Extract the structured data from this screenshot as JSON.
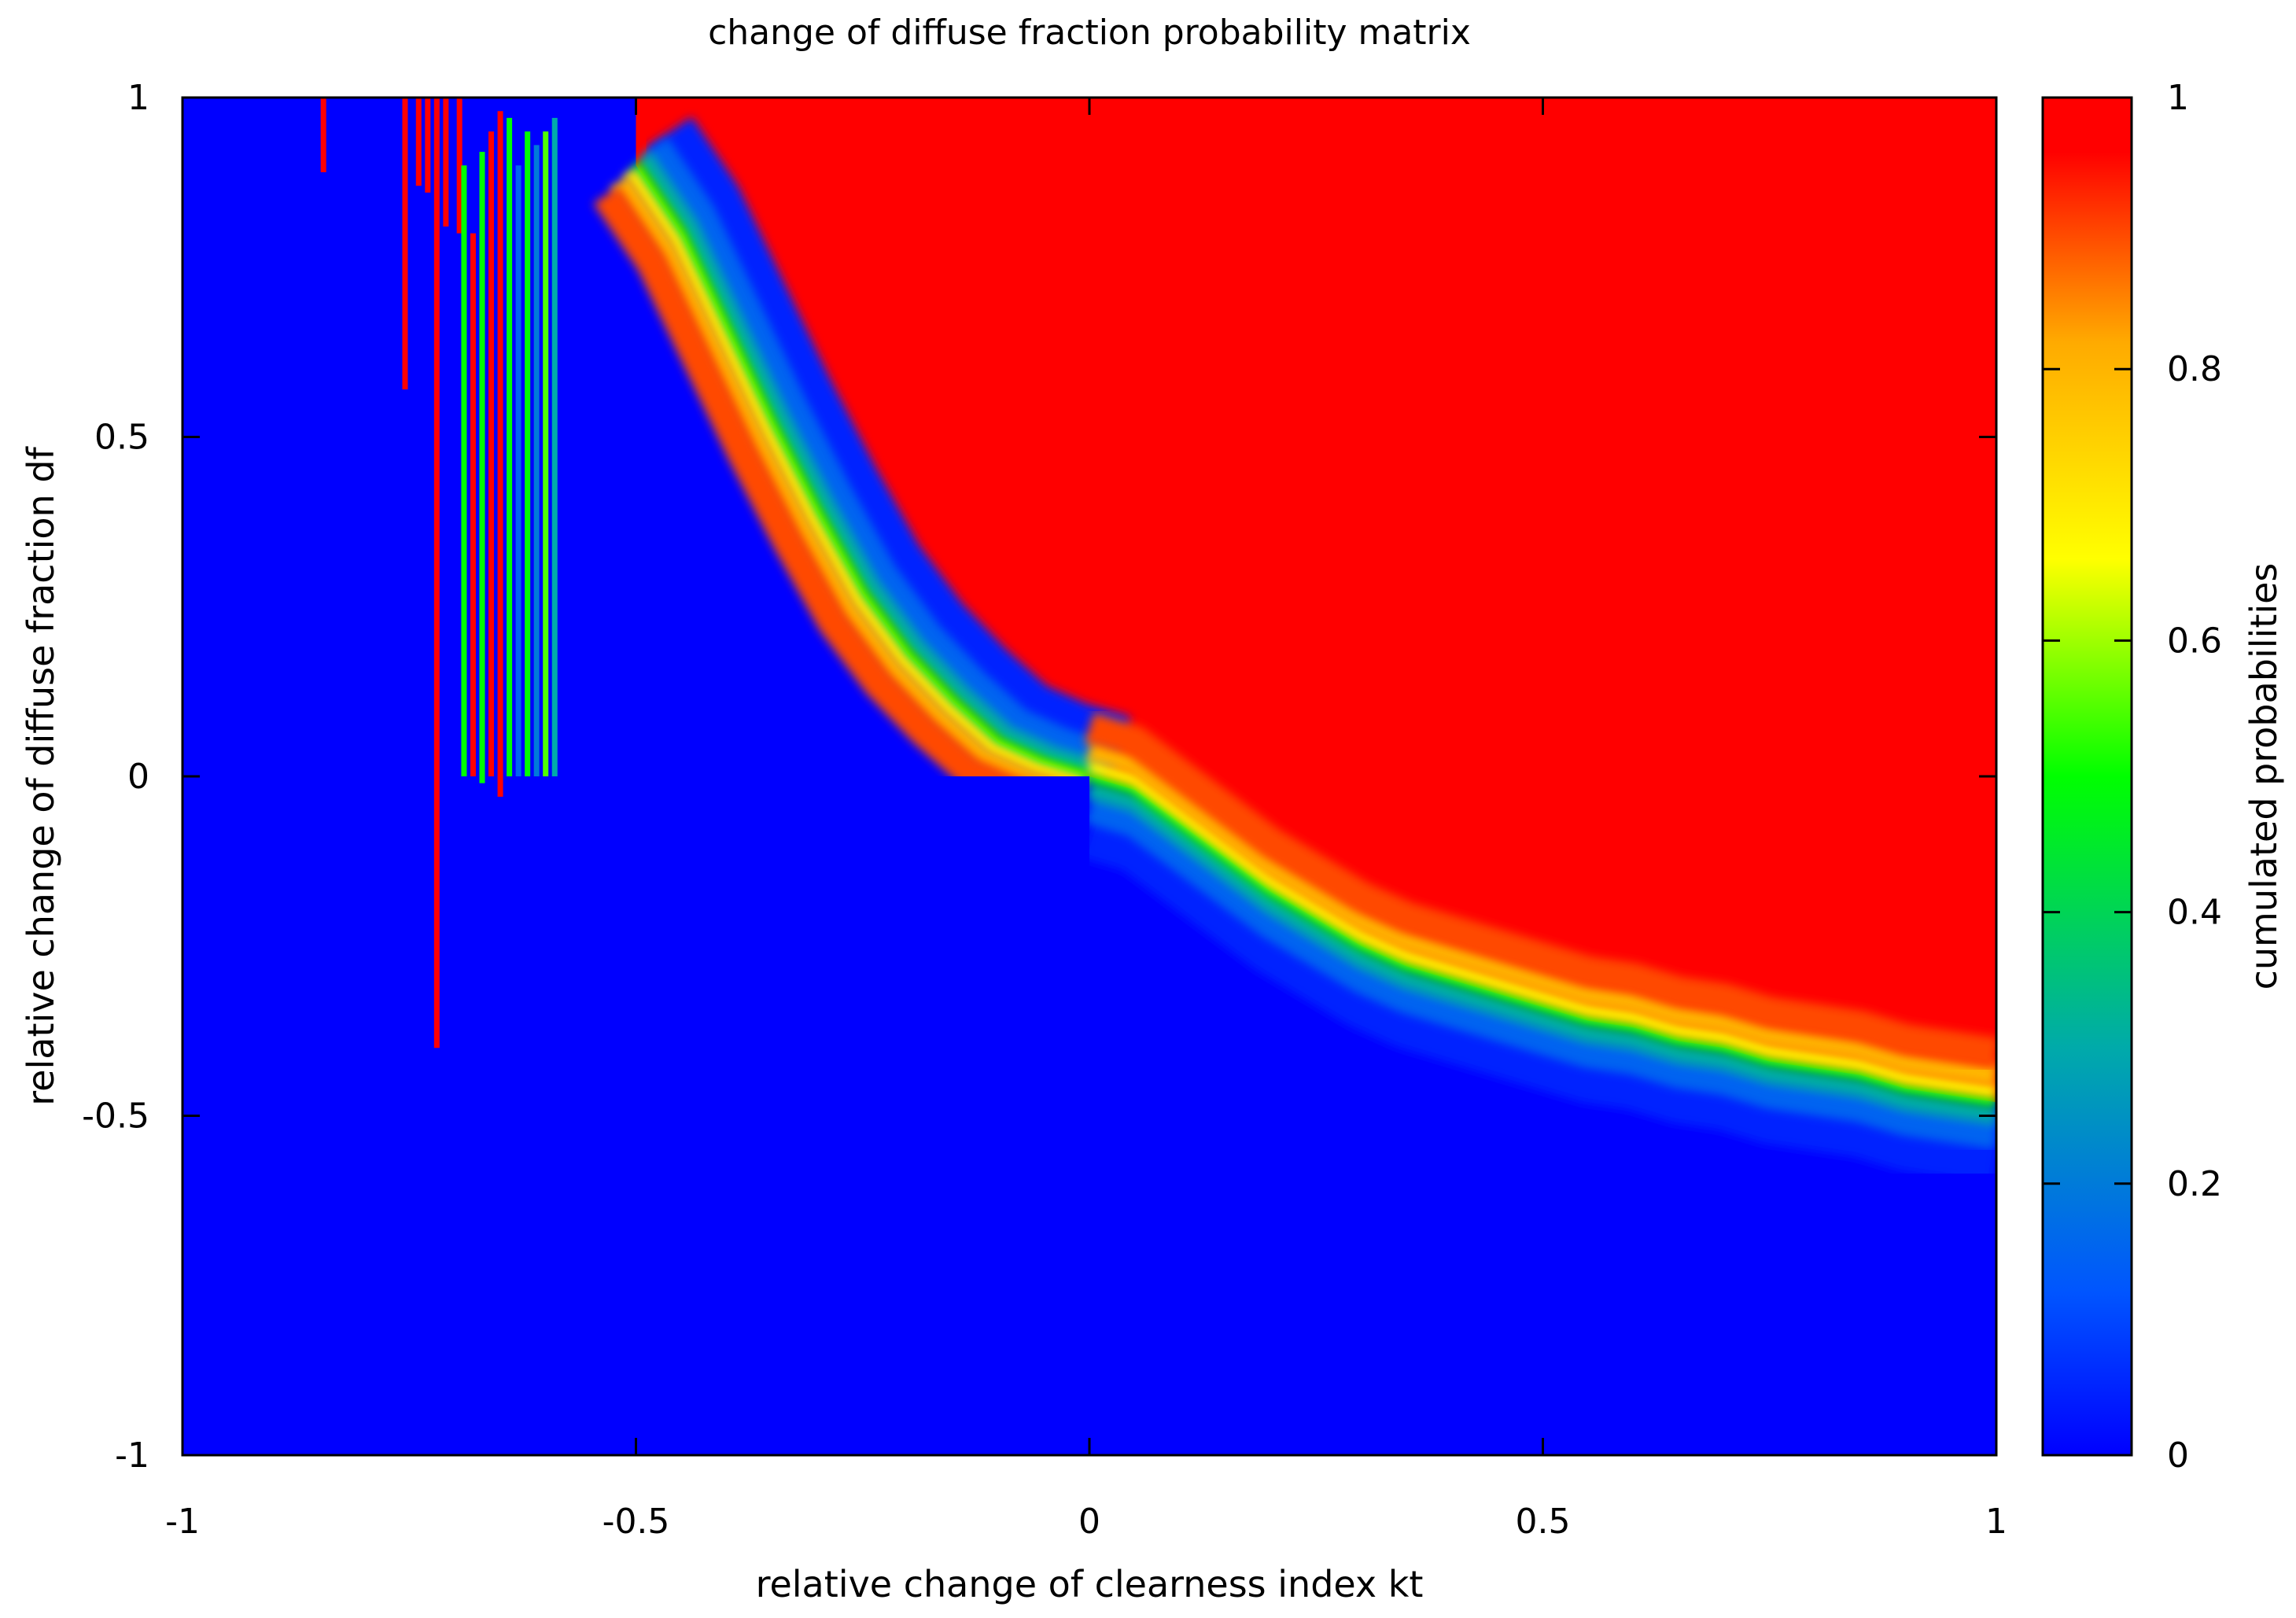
{
  "chart_data": {
    "type": "heatmap",
    "title": "change of diffuse fraction probability matrix",
    "xlabel": "relative change of clearness index kt",
    "ylabel": "relative change of diffuse fraction df",
    "colorbar_label": "cumulated probabilities",
    "xlim": [
      -1,
      1
    ],
    "ylim": [
      -1,
      1
    ],
    "zlim": [
      0,
      1
    ],
    "xticks": [
      -1,
      -0.5,
      0,
      0.5,
      1
    ],
    "xtick_labels": [
      "-1",
      "-0.5",
      "0",
      "0.5",
      "1"
    ],
    "yticks": [
      -1,
      -0.5,
      0,
      0.5,
      1
    ],
    "ytick_labels": [
      "-1",
      "-0.5",
      "0",
      "0.5",
      "1"
    ],
    "colorbar_ticks": [
      0,
      0.2,
      0.4,
      0.6,
      0.8,
      1
    ],
    "colorbar_tick_labels": [
      "0",
      "0.2",
      "0.4",
      "0.6",
      "0.8",
      "1"
    ],
    "palette": [
      "#0000ff",
      "#0055ff",
      "#00aaaa",
      "#00ff00",
      "#ffff00",
      "#ffaa00",
      "#ff0000"
    ],
    "grid": false,
    "legend": "colorbar-right",
    "median_boundary": {
      "description_source": "approximate 0.5-probability contour read from the plot",
      "x": [
        -0.5,
        -0.45,
        -0.4,
        -0.35,
        -0.3,
        -0.25,
        -0.2,
        -0.15,
        -0.1,
        -0.05,
        0.0,
        0.05,
        0.1,
        0.15,
        0.2,
        0.25,
        0.3,
        0.35,
        0.4,
        0.45,
        0.5,
        0.55,
        0.6,
        0.65,
        0.7,
        0.75,
        0.8,
        0.85,
        0.9,
        0.95,
        1.0
      ],
      "y": [
        0.9,
        0.8,
        0.66,
        0.52,
        0.39,
        0.27,
        0.18,
        0.11,
        0.05,
        0.02,
        0.0,
        -0.02,
        -0.07,
        -0.12,
        -0.17,
        -0.21,
        -0.25,
        -0.28,
        -0.3,
        -0.32,
        -0.34,
        -0.36,
        -0.37,
        -0.39,
        -0.4,
        -0.42,
        -0.43,
        -0.44,
        -0.46,
        -0.47,
        -0.48
      ]
    },
    "sparse_columns": [
      {
        "x": -0.845,
        "y_from": 0.89,
        "y_to": 1.0,
        "value": 1.0
      },
      {
        "x": -0.755,
        "y_from": 0.57,
        "y_to": 1.0,
        "value": 1.0
      },
      {
        "x": -0.74,
        "y_from": 0.87,
        "y_to": 1.0,
        "value": 1.0
      },
      {
        "x": -0.73,
        "y_from": 0.86,
        "y_to": 1.0,
        "value": 1.0
      },
      {
        "x": -0.72,
        "y_from": -0.4,
        "y_to": 1.0,
        "value": 1.0
      },
      {
        "x": -0.71,
        "y_from": 0.81,
        "y_to": 1.0,
        "value": 1.0
      },
      {
        "x": -0.695,
        "y_from": 0.8,
        "y_to": 1.0,
        "value": 1.0
      },
      {
        "x": -0.69,
        "y_from": 0.0,
        "y_to": 0.9,
        "value": 0.5
      },
      {
        "x": -0.68,
        "y_from": 0.0,
        "y_to": 0.8,
        "value": 1.0
      },
      {
        "x": -0.67,
        "y_from": -0.01,
        "y_to": 0.92,
        "value": 0.5
      },
      {
        "x": -0.66,
        "y_from": 0.0,
        "y_to": 0.95,
        "value": 1.0
      },
      {
        "x": -0.65,
        "y_from": -0.03,
        "y_to": 0.98,
        "value": 1.0
      },
      {
        "x": -0.64,
        "y_from": 0.0,
        "y_to": 0.97,
        "value": 0.5
      },
      {
        "x": -0.63,
        "y_from": 0.0,
        "y_to": 0.9,
        "value": 0.15
      },
      {
        "x": -0.62,
        "y_from": 0.0,
        "y_to": 0.95,
        "value": 0.5
      },
      {
        "x": -0.61,
        "y_from": 0.0,
        "y_to": 0.93,
        "value": 0.2
      },
      {
        "x": -0.6,
        "y_from": 0.0,
        "y_to": 0.95,
        "value": 0.55
      },
      {
        "x": -0.59,
        "y_from": 0.0,
        "y_to": 0.97,
        "value": 0.3
      }
    ]
  }
}
